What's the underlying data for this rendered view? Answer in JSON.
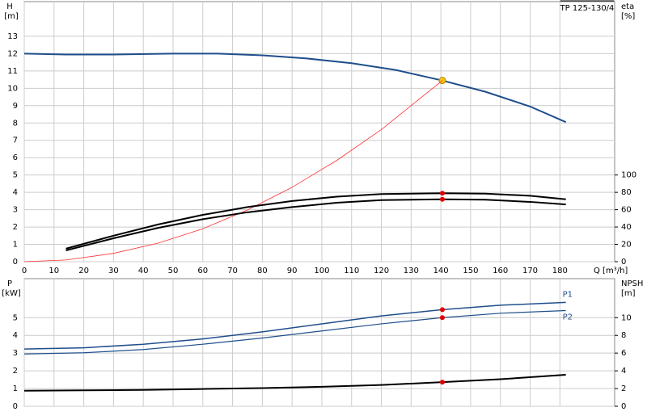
{
  "chart_data": [
    {
      "type": "line",
      "title": "TP 125-130/4",
      "y_label": "H",
      "y_unit": "[m]",
      "y2_label": "eta",
      "y2_unit": "[%]",
      "x_label": "Q [m³/h]",
      "xlim": [
        0,
        198.4
      ],
      "xticks": [
        0,
        10,
        20,
        30,
        40,
        50,
        60,
        70,
        80,
        90,
        100,
        110,
        120,
        130,
        140,
        150,
        160,
        170,
        180
      ],
      "ylim": [
        0,
        15
      ],
      "yticks": [
        0,
        1,
        2,
        3,
        4,
        5,
        6,
        7,
        8,
        9,
        10,
        11,
        12,
        13
      ],
      "y2lim": [
        0,
        300
      ],
      "y2ticks": [
        0,
        20,
        40,
        60,
        80,
        100
      ],
      "grid": true,
      "duty_q": 140.5,
      "series": [
        {
          "color": "#1f4e8c",
          "width": 2,
          "marker": "#f5c518",
          "x": [
            0,
            14,
            30,
            50,
            65,
            80,
            95,
            110,
            125,
            140.5,
            155,
            170,
            182
          ],
          "values": [
            12.0,
            11.95,
            11.95,
            12.0,
            12.0,
            11.9,
            11.72,
            11.45,
            11.05,
            10.45,
            9.8,
            8.95,
            8.05
          ]
        },
        {
          "color": "#ff3030",
          "width": 0.8,
          "x": [
            0,
            14,
            30,
            45,
            60,
            75,
            90,
            105,
            120,
            140.5
          ],
          "values": [
            0,
            0.1,
            0.48,
            1.07,
            1.9,
            2.98,
            4.29,
            5.84,
            7.62,
            10.45
          ]
        },
        {
          "color": "#000000",
          "width": 2,
          "axis": "y2",
          "marker": "#e00000",
          "x": [
            14,
            30,
            45,
            60,
            75,
            90,
            105,
            120,
            140.5,
            155,
            170,
            182
          ],
          "values": [
            15,
            30,
            43,
            54,
            63,
            70,
            75,
            78,
            79,
            78.5,
            76,
            72
          ]
        },
        {
          "color": "#000000",
          "width": 2,
          "axis": "y2",
          "marker": "#e00000",
          "x": [
            14,
            30,
            45,
            60,
            75,
            90,
            105,
            120,
            140.5,
            155,
            170,
            182
          ],
          "values": [
            13,
            27,
            39,
            49,
            57,
            63,
            68,
            71,
            72,
            71.5,
            69,
            66
          ]
        }
      ]
    },
    {
      "type": "line",
      "y_label": "P",
      "y_unit": "[kW]",
      "y2_label": "NPSH",
      "y2_unit": "[m]",
      "xlim": [
        0,
        198.4
      ],
      "xticks": [
        0,
        10,
        20,
        30,
        40,
        50,
        60,
        70,
        80,
        90,
        100,
        110,
        120,
        130,
        140,
        150,
        160,
        170,
        180
      ],
      "ylim": [
        0,
        7.2
      ],
      "yticks": [
        0,
        1,
        2,
        3,
        4,
        5
      ],
      "y2lim": [
        0,
        14.4
      ],
      "y2ticks": [
        0,
        2,
        4,
        6,
        8,
        10
      ],
      "grid": true,
      "duty_q": 140.5,
      "series": [
        {
          "name": "P1",
          "color": "#1f4e8c",
          "width": 1.5,
          "marker": "#e00000",
          "x": [
            0,
            20,
            40,
            60,
            80,
            100,
            120,
            140.5,
            160,
            182
          ],
          "values": [
            3.23,
            3.3,
            3.5,
            3.8,
            4.2,
            4.65,
            5.1,
            5.45,
            5.7,
            5.86
          ]
        },
        {
          "name": "P2",
          "color": "#1f4e8c",
          "width": 1.2,
          "marker": "#e00000",
          "x": [
            0,
            20,
            40,
            60,
            80,
            100,
            120,
            140.5,
            160,
            182
          ],
          "values": [
            2.95,
            3.02,
            3.2,
            3.5,
            3.85,
            4.25,
            4.65,
            5.0,
            5.25,
            5.4
          ]
        },
        {
          "color": "#000000",
          "width": 2,
          "axis": "y2",
          "marker": "#e00000",
          "x": [
            0,
            20,
            40,
            60,
            80,
            100,
            120,
            140.5,
            160,
            182
          ],
          "values": [
            1.75,
            1.8,
            1.85,
            1.95,
            2.05,
            2.2,
            2.4,
            2.72,
            3.05,
            3.55
          ]
        }
      ]
    }
  ]
}
